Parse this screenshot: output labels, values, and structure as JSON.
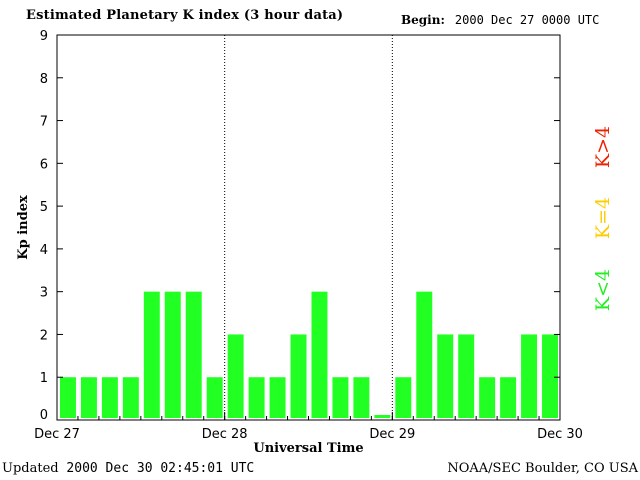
{
  "header": {
    "title": "Estimated Planetary K index (3 hour data)",
    "begin_label": "Begin:",
    "begin_value": "2000 Dec 27 0000 UTC"
  },
  "footer": {
    "updated_label": "Updated",
    "updated_value": "2000 Dec 30 02:45:01 UTC",
    "credit": "NOAA/SEC Boulder, CO USA"
  },
  "colors": {
    "bar": "#22ff22",
    "legend_low": "#22ee22",
    "legend_eq": "#ffcc00",
    "legend_high": "#ee2200"
  },
  "chart_data": {
    "type": "bar",
    "title": "Estimated Planetary K index (3 hour data)",
    "xlabel": "Universal Time",
    "ylabel": "Kp index",
    "ylim": [
      0,
      9
    ],
    "yticks": [
      0,
      1,
      2,
      3,
      4,
      5,
      6,
      7,
      8,
      9
    ],
    "x_tick_labels": [
      "Dec 27",
      "Dec 28",
      "Dec 29",
      "Dec 30"
    ],
    "interval_hours": 3,
    "values": [
      1,
      1,
      1,
      1,
      3,
      3,
      3,
      1,
      2,
      1,
      1,
      2,
      3,
      1,
      1,
      0,
      1,
      3,
      2,
      2,
      1,
      1,
      2,
      2
    ],
    "day_separators": "dotted",
    "legend": [
      "K<4",
      "K=4",
      "K>4"
    ],
    "legend_placement": "right"
  }
}
